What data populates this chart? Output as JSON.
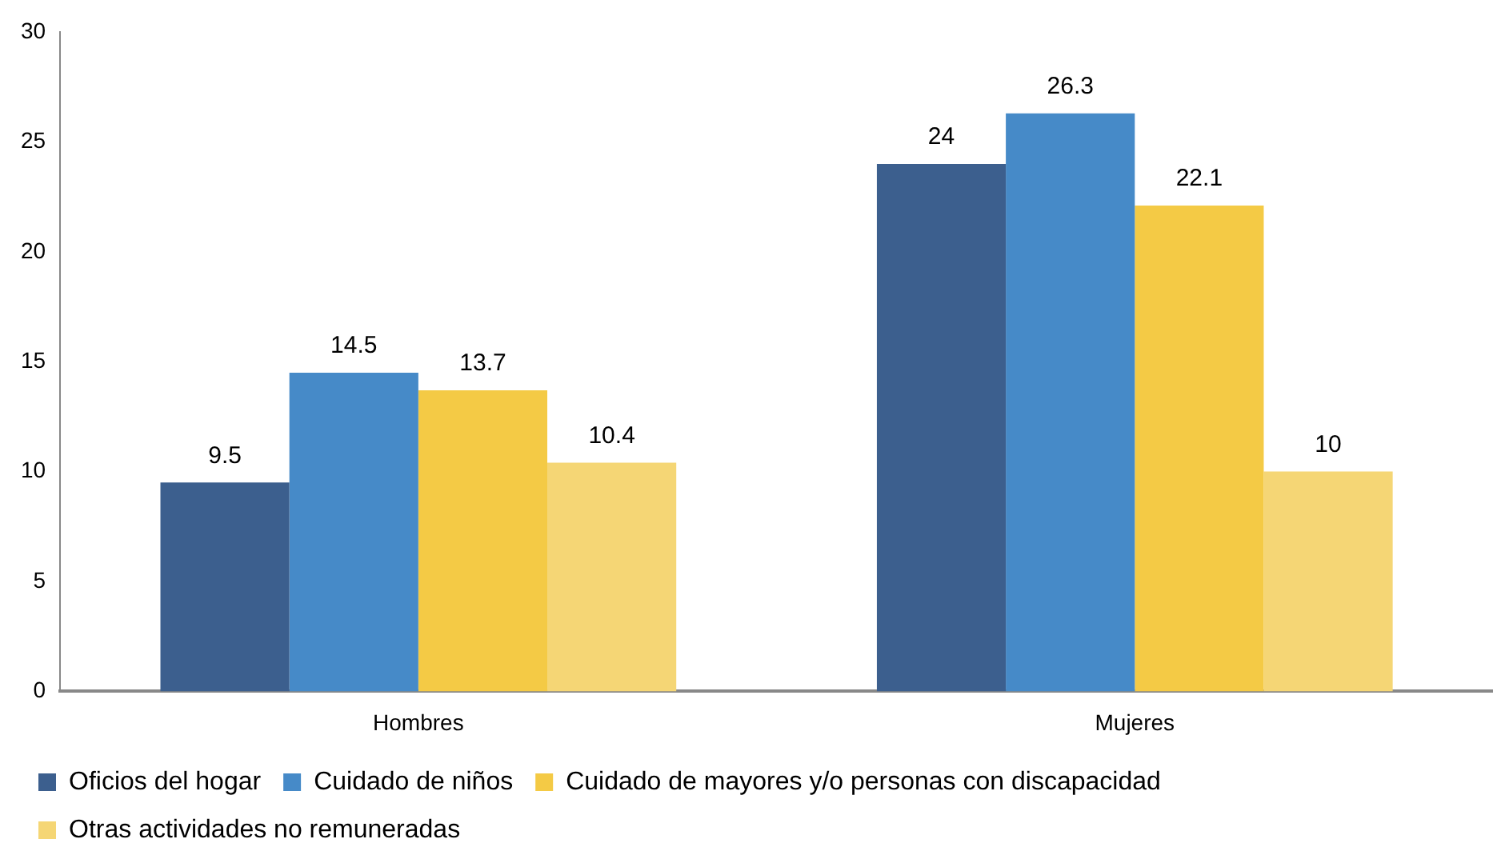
{
  "chart_data": {
    "type": "bar",
    "categories": [
      "Hombres",
      "Mujeres"
    ],
    "series": [
      {
        "name": "Oficios del hogar",
        "color": "#3c5f8e",
        "values": [
          9.5,
          24
        ]
      },
      {
        "name": "Cuidado de niños",
        "color": "#468ac8",
        "values": [
          14.5,
          26.3
        ]
      },
      {
        "name": "Cuidado de mayores y/o personas con discapacidad",
        "color": "#f4ca45",
        "values": [
          13.7,
          22.1
        ]
      },
      {
        "name": "Otras actividades no remuneradas",
        "color": "#f5d675",
        "values": [
          10.4,
          10
        ]
      }
    ],
    "ylim": [
      0,
      30
    ],
    "yticks": [
      0,
      5,
      10,
      15,
      20,
      25,
      30
    ],
    "grid": false,
    "legend": "bottom",
    "data_labels": true
  }
}
